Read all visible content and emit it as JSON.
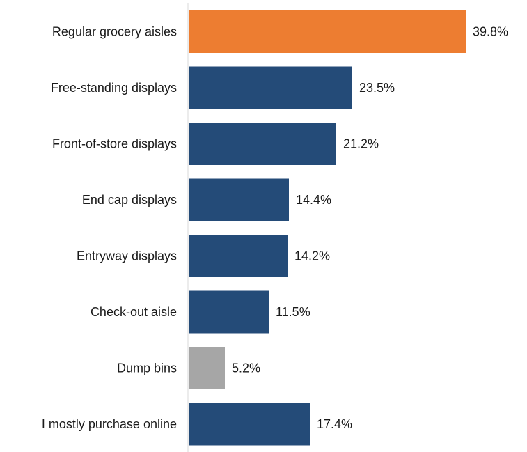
{
  "chart_data": {
    "type": "bar",
    "orientation": "horizontal",
    "categories": [
      "Regular grocery aisles",
      "Free-standing displays",
      "Front-of-store displays",
      "End cap displays",
      "Entryway displays",
      "Check-out aisle",
      "Dump bins",
      "I mostly purchase online"
    ],
    "values": [
      39.8,
      23.5,
      21.2,
      14.4,
      14.2,
      11.5,
      5.2,
      17.4
    ],
    "value_labels": [
      "39.8%",
      "23.5%",
      "21.2%",
      "14.4%",
      "14.2%",
      "11.5%",
      "5.2%",
      "17.4%"
    ],
    "bar_colors": [
      "#ED7D31",
      "#244B78",
      "#244B78",
      "#244B78",
      "#244B78",
      "#244B78",
      "#A6A6A6",
      "#244B78"
    ],
    "value_unit": "%",
    "title": "",
    "xlabel": "",
    "ylabel": "",
    "grid": false,
    "legend": "none"
  }
}
